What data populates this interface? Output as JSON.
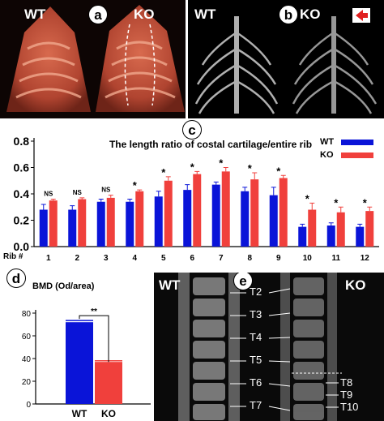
{
  "panels": {
    "a": {
      "letter": "a",
      "label_left": "WT",
      "label_right": "KO"
    },
    "b": {
      "letter": "b",
      "label_left": "WT",
      "label_right": "KO"
    },
    "c": {
      "letter": "c"
    },
    "d": {
      "letter": "d"
    },
    "e": {
      "letter": "e",
      "label_left": "WT",
      "label_right": "KO",
      "vertebra_labels_left": [
        "T2",
        "T3",
        "T4",
        "T5",
        "T6",
        "T7"
      ],
      "vertebra_labels_right": [
        "T8",
        "T9",
        "T10"
      ]
    }
  },
  "colors": {
    "wt": "#0a14d8",
    "ko": "#f0403c"
  },
  "chart_data": [
    {
      "type": "bar",
      "title": "The length ratio of costal cartilage/entire rib",
      "xlabel": "Rib #",
      "categories": [
        "1",
        "2",
        "3",
        "4",
        "5",
        "6",
        "7",
        "8",
        "9",
        "10",
        "11",
        "12"
      ],
      "series": [
        {
          "name": "WT",
          "values": [
            0.28,
            0.28,
            0.34,
            0.34,
            0.38,
            0.43,
            0.47,
            0.42,
            0.39,
            0.15,
            0.16,
            0.15
          ],
          "errors": [
            0.04,
            0.03,
            0.02,
            0.02,
            0.04,
            0.04,
            0.02,
            0.03,
            0.06,
            0.02,
            0.02,
            0.02
          ]
        },
        {
          "name": "KO",
          "values": [
            0.35,
            0.36,
            0.37,
            0.42,
            0.5,
            0.55,
            0.57,
            0.51,
            0.52,
            0.28,
            0.26,
            0.27
          ],
          "errors": [
            0.01,
            0.01,
            0.02,
            0.01,
            0.03,
            0.02,
            0.03,
            0.05,
            0.02,
            0.05,
            0.04,
            0.03
          ]
        }
      ],
      "annotations": [
        "NS",
        "NS",
        "NS",
        "*",
        "*",
        "*",
        "*",
        "*",
        "*",
        "*",
        "*",
        "*"
      ],
      "yticks": [
        "0.0",
        "0.2",
        "0.4",
        "0.6",
        "0.8"
      ],
      "ylim": [
        0,
        0.8
      ],
      "legend_position": "top-right",
      "grid": false
    },
    {
      "type": "bar",
      "title": "BMD (Od/area)",
      "categories": [
        "WT",
        "KO"
      ],
      "values": [
        72,
        37
      ],
      "errors": [
        1.5,
        1
      ],
      "significance": "**",
      "yticks": [
        "0",
        "20",
        "40",
        "60",
        "80"
      ],
      "ylim": [
        0,
        80
      ],
      "grid": false
    }
  ]
}
